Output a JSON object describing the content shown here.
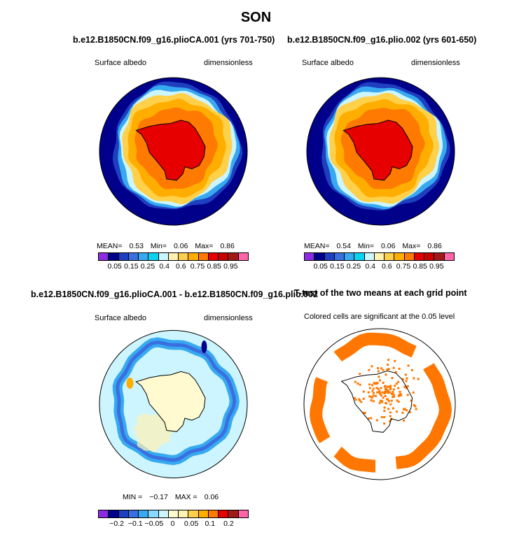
{
  "figure": {
    "title": "SON",
    "colors": {
      "abs": [
        "#8b2be2",
        "#00008b",
        "#1e3fbf",
        "#3a6fe0",
        "#37a9f0",
        "#0ad2f0",
        "#ccf5ff",
        "#fff2b2",
        "#ffd04a",
        "#ffae00",
        "#ff7a00",
        "#e60000",
        "#c80000",
        "#a01a1a",
        "#ff66aa"
      ],
      "diff": [
        "#8b2be2",
        "#00008b",
        "#1e3fbf",
        "#3a6fe0",
        "#37a9f0",
        "#8ad8ff",
        "#ccf5ff",
        "#fffad0",
        "#fff2b2",
        "#ffd04a",
        "#ffae00",
        "#ff7a00",
        "#e60000",
        "#a01a1a",
        "#ff66aa"
      ],
      "significant": "#ff7700"
    }
  },
  "panels": {
    "p1": {
      "title": "b.e12.B1850CN.f09_g16.plioCA.001 (yrs 701-750)",
      "left_label": "Surface albedo",
      "right_label": "dimensionless",
      "mean_label": "MEAN=",
      "mean": "0.53",
      "min_label": "Min=",
      "min": "0.06",
      "max_label": "Max=",
      "max": "0.86",
      "colorbar_labels": [
        "0.05",
        "0.15",
        "0.25",
        "0.4",
        "0.6",
        "0.75",
        "0.85",
        "0.95"
      ]
    },
    "p2": {
      "title": "b.e12.B1850CN.f09_g16.plio.002 (yrs 601-650)",
      "left_label": "Surface albedo",
      "right_label": "dimensionless",
      "mean_label": "MEAN=",
      "mean": "0.54",
      "min_label": "Min=",
      "min": "0.06",
      "max_label": "Max=",
      "max": "0.86",
      "colorbar_labels": [
        "0.05",
        "0.15",
        "0.25",
        "0.4",
        "0.6",
        "0.75",
        "0.85",
        "0.95"
      ]
    },
    "p3": {
      "title": "b.e12.B1850CN.f09_g16.plioCA.001 - b.e12.B1850CN.f09_g16.plio.002",
      "left_label": "Surface albedo",
      "right_label": "dimensionless",
      "min_label": "MIN =",
      "min": "−0.17",
      "max_label": "MAX =",
      "max": "0.06",
      "colorbar_labels": [
        "−0.2",
        "−0.1",
        "−0.05",
        "0",
        "0.05",
        "0.1",
        "0.2"
      ]
    },
    "p4": {
      "title": "T-test of the two means at each grid point",
      "subtitle": "Colored cells are significant at the 0.05 level"
    }
  }
}
